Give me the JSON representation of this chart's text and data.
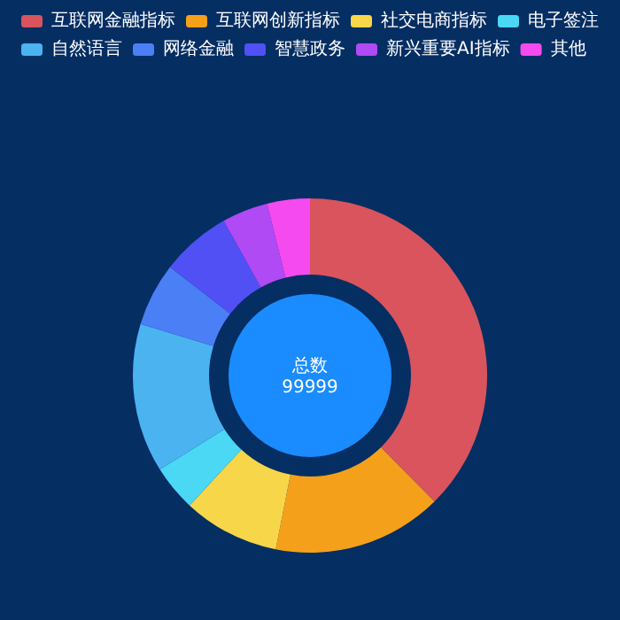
{
  "chart_data": {
    "type": "donut",
    "title": "总数",
    "subtitle": "99999",
    "categories": [
      "互联网金融指标",
      "互联网创新指标",
      "社交电商指标",
      "电子签注",
      "自然语言",
      "网络金融",
      "智慧政务",
      "新兴重要AI指标",
      "其他"
    ],
    "values": [
      37.6,
      15.5,
      8.8,
      4.2,
      13.6,
      5.8,
      6.4,
      4.2,
      3.9
    ],
    "colors": [
      "#d9545c",
      "#f5a01a",
      "#f7d64a",
      "#4ad8f5",
      "#4ab3f0",
      "#4a7ff5",
      "#5050f5",
      "#b04af5",
      "#f54af0"
    ],
    "legend": "top"
  }
}
